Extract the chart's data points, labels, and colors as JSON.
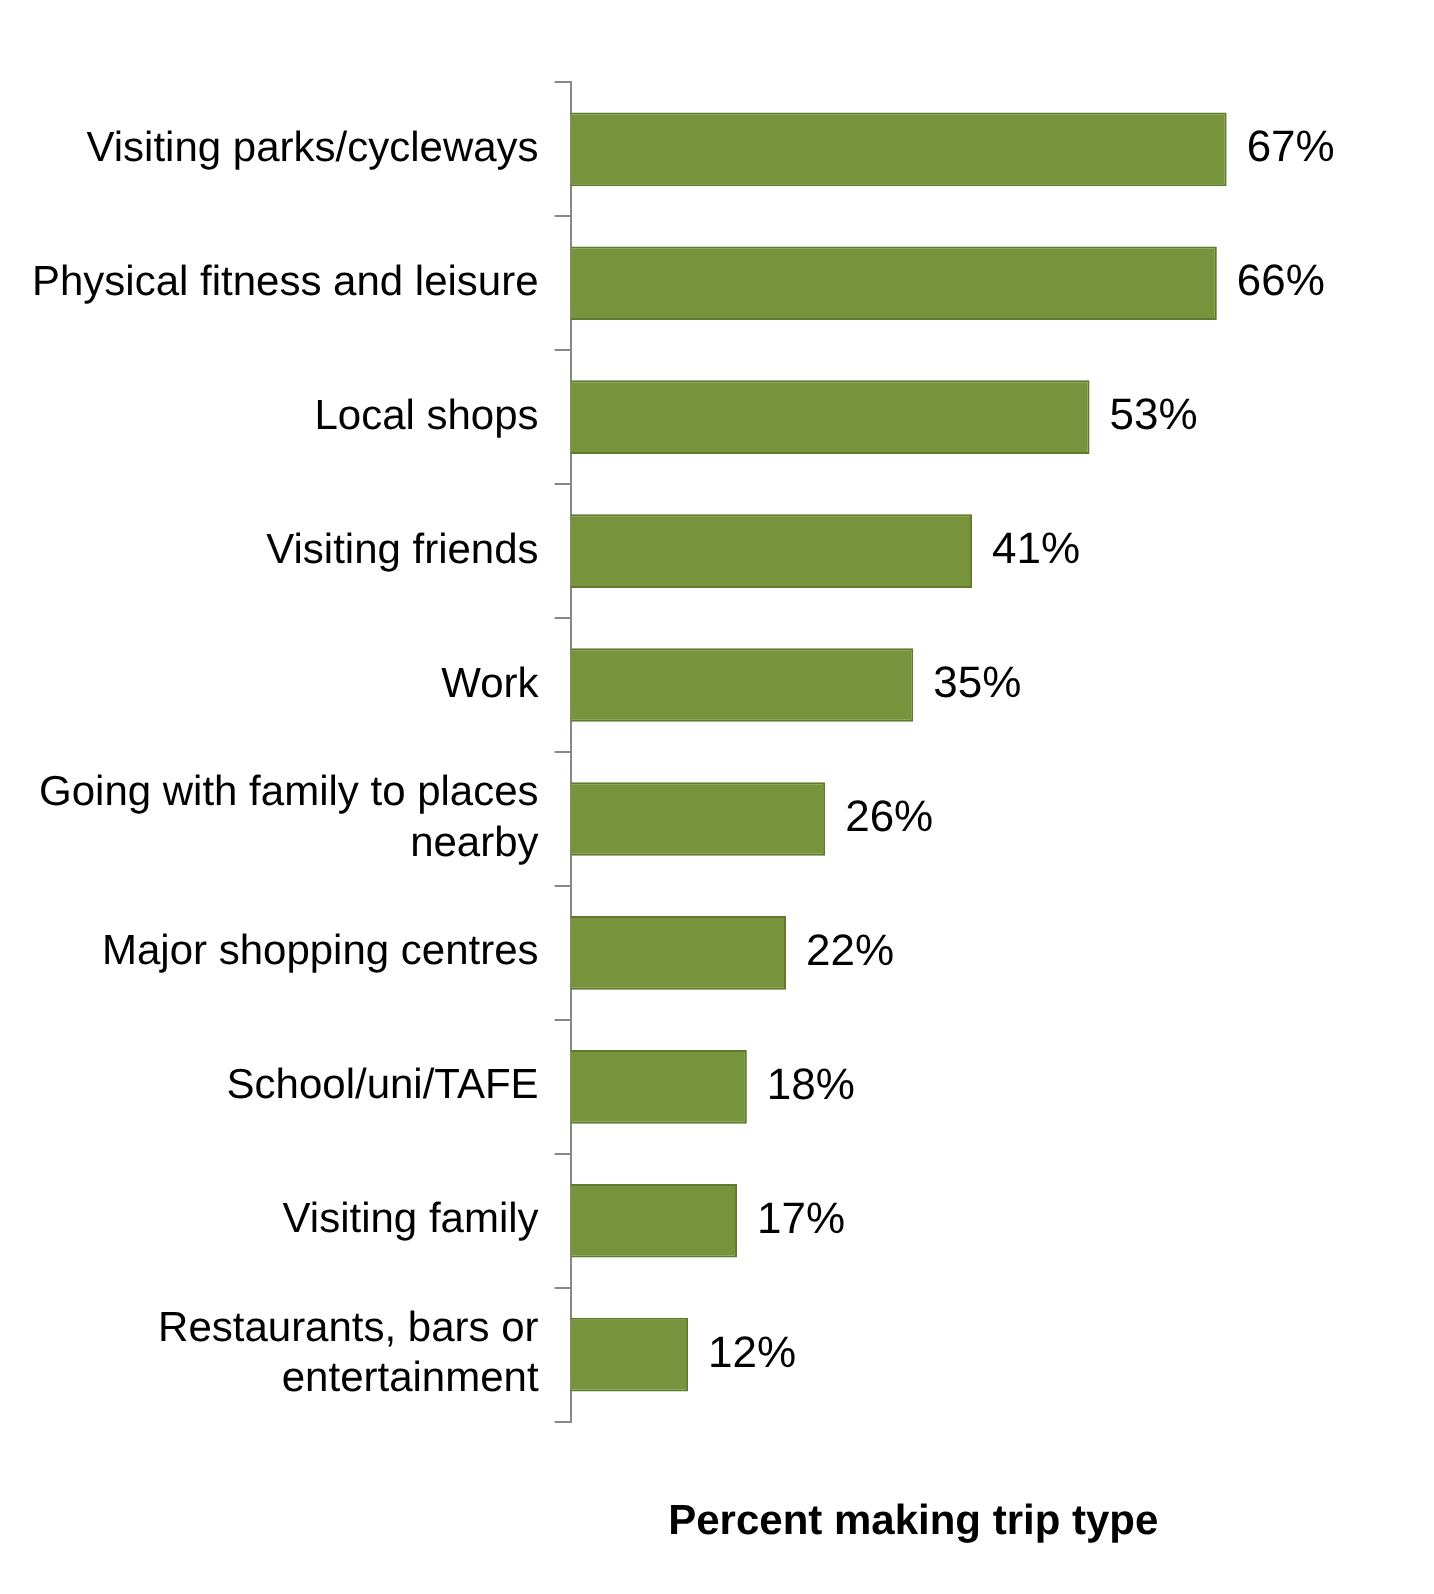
{
  "chart_data": {
    "type": "bar",
    "orientation": "horizontal",
    "xlabel": "Percent making trip type",
    "categories": [
      "Visiting parks/cycleways",
      "Physical fitness and leisure",
      "Local shops",
      "Visiting friends",
      "Work",
      "Going with family to places nearby",
      "Major shopping centres",
      "School/uni/TAFE",
      "Visiting family",
      "Restaurants, bars or entertainment"
    ],
    "values": [
      67,
      66,
      53,
      41,
      35,
      26,
      22,
      18,
      17,
      12
    ],
    "color": "#77933c",
    "value_labels": [
      "67%",
      "66%",
      "53%",
      "41%",
      "35%",
      "26%",
      "22%",
      "18%",
      "17%",
      "12%"
    ],
    "legend": false,
    "grid": false
  }
}
